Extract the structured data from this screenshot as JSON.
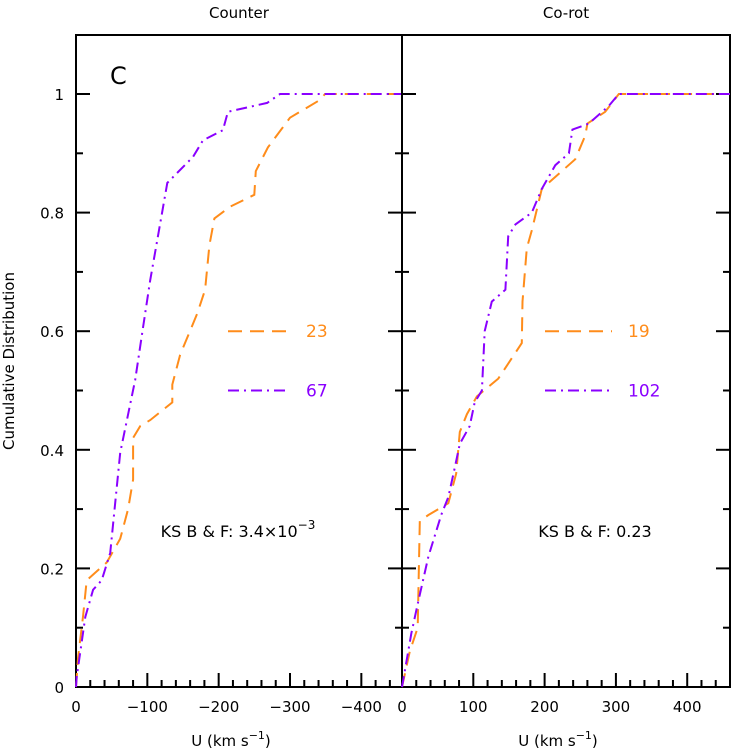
{
  "chart_data": [
    {
      "type": "line",
      "title": "Counter",
      "panel_label": "C",
      "xlabel": "U (km s",
      "xlabel_exp": "−1",
      "ylabel": "Cumulative Distribution",
      "xlim": [
        0,
        -457
      ],
      "ylim": [
        0,
        1.1
      ],
      "xticks": [
        0,
        -100,
        -200,
        -300,
        -400
      ],
      "xtick_labels": [
        "0",
        "−100",
        "−200",
        "−300",
        "−400"
      ],
      "yticks": [
        0,
        0.2,
        0.4,
        0.6,
        0.8,
        1
      ],
      "ytick_labels": [
        "0",
        "0.2",
        "0.4",
        "0.6",
        "0.8",
        "1"
      ],
      "annotation": "KS B & F: 3.4×10",
      "annotation_exp": "−3",
      "grid": false,
      "series": [
        {
          "name": "23",
          "color": "#ff8c1a",
          "style": "dashed",
          "x": [
            0,
            -3,
            -10,
            -15,
            -43,
            -62,
            -73,
            -80,
            -80,
            -90,
            -104,
            -135,
            -135,
            -146,
            -170,
            -181,
            -187,
            -194,
            -216,
            -250,
            -252,
            -269,
            -300,
            -342,
            -349,
            -457
          ],
          "y": [
            0,
            0.05,
            0.12,
            0.18,
            0.21,
            0.25,
            0.3,
            0.35,
            0.42,
            0.44,
            0.45,
            0.48,
            0.51,
            0.56,
            0.63,
            0.67,
            0.745,
            0.79,
            0.81,
            0.83,
            0.87,
            0.91,
            0.96,
            0.99,
            1,
            1
          ]
        },
        {
          "name": "67",
          "color": "#8a00ff",
          "style": "dash-dot",
          "x": [
            0,
            -1,
            -13,
            -24,
            -36,
            -48,
            -62,
            -83,
            -94,
            -104,
            -114,
            -128,
            -164,
            -178,
            -206,
            -213,
            -268,
            -286,
            -457
          ],
          "y": [
            0,
            0.017,
            0.118,
            0.164,
            0.18,
            0.226,
            0.395,
            0.518,
            0.607,
            0.686,
            0.754,
            0.85,
            0.894,
            0.922,
            0.939,
            0.97,
            0.985,
            1,
            1
          ]
        }
      ]
    },
    {
      "type": "line",
      "title": "Co-rot",
      "xlabel": "U (km s",
      "xlabel_exp": "−1",
      "xlim": [
        0,
        460
      ],
      "ylim": [
        0,
        1.1
      ],
      "xticks": [
        0,
        100,
        200,
        300,
        400
      ],
      "xtick_labels": [
        "0",
        "100",
        "200",
        "300",
        "400"
      ],
      "annotation": "KS B & F: 0.23",
      "grid": false,
      "series": [
        {
          "name": "19",
          "color": "#ff8c1a",
          "style": "dashed",
          "x": [
            0,
            11,
            22,
            25,
            37,
            65,
            76,
            81,
            91,
            105,
            135,
            168,
            169,
            175,
            182,
            196,
            243,
            257,
            260,
            285,
            304,
            460
          ],
          "y": [
            0,
            0.06,
            0.1,
            0.28,
            0.29,
            0.31,
            0.36,
            0.43,
            0.46,
            0.49,
            0.52,
            0.58,
            0.65,
            0.74,
            0.77,
            0.84,
            0.89,
            0.93,
            0.95,
            0.97,
            1,
            1
          ]
        },
        {
          "name": "102",
          "color": "#8a00ff",
          "style": "dash-dot",
          "x": [
            0,
            13,
            22,
            37,
            55,
            65,
            74,
            81,
            95,
            102,
            112,
            116,
            126,
            145,
            149,
            159,
            182,
            196,
            215,
            234,
            239,
            262,
            290,
            304,
            460
          ],
          "y": [
            0,
            0.09,
            0.14,
            0.22,
            0.29,
            0.32,
            0.37,
            0.41,
            0.44,
            0.48,
            0.5,
            0.6,
            0.65,
            0.67,
            0.76,
            0.78,
            0.8,
            0.84,
            0.88,
            0.9,
            0.94,
            0.95,
            0.98,
            1,
            1
          ]
        }
      ]
    }
  ]
}
